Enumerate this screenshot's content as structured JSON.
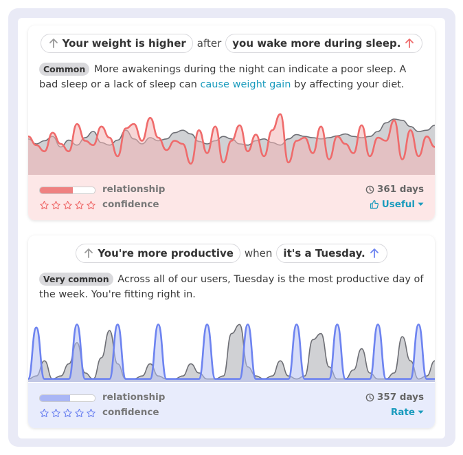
{
  "cards": [
    {
      "headline": {
        "left_pill": "Your weight is higher",
        "joiner": "after",
        "right_pill": "you wake more during sleep."
      },
      "tag": "Common",
      "description_before": "More awakenings during the night can indicate a poor sleep. A bad sleep or a lack of sleep can",
      "link": "cause weight gain",
      "description_after": "by affecting your diet.",
      "relationship_label": "relationship",
      "confidence_label": "confidence",
      "relationship_level": 0.6,
      "confidence_stars": 0,
      "days": "361 days",
      "action": "Useful",
      "colors": {
        "accent": "#ef6b6b",
        "fill": "#f3b5b5",
        "gray_fill": "#c8c9cd"
      },
      "series_a": [
        0.58,
        0.5,
        0.55,
        0.62,
        0.45,
        0.56,
        0.48,
        0.6,
        0.7,
        0.52,
        0.48,
        0.56,
        0.72,
        0.58,
        0.5,
        0.6,
        0.55,
        0.58,
        0.68,
        0.72,
        0.66,
        0.54,
        0.5,
        0.55,
        0.62,
        0.58,
        0.5,
        0.48,
        0.55,
        0.58,
        0.52,
        0.48,
        0.58,
        0.65,
        0.62,
        0.6,
        0.58,
        0.6,
        0.63,
        0.66,
        0.62,
        0.6,
        0.62,
        0.7,
        0.84,
        0.9,
        0.88,
        0.78,
        0.7,
        0.72,
        0.8
      ],
      "series_b": [
        0.62,
        0.48,
        0.38,
        0.68,
        0.5,
        0.38,
        0.82,
        0.55,
        0.48,
        0.78,
        0.6,
        0.3,
        0.75,
        0.82,
        0.55,
        0.92,
        0.6,
        0.4,
        0.55,
        0.5,
        0.18,
        0.72,
        0.35,
        0.78,
        0.2,
        0.55,
        0.8,
        0.38,
        0.65,
        0.3,
        0.72,
        0.98,
        0.2,
        0.55,
        0.6,
        0.35,
        0.78,
        0.25,
        0.62,
        0.5,
        0.35,
        0.8,
        0.3,
        0.6,
        0.55,
        0.88,
        0.25,
        0.72,
        0.3,
        0.62,
        0.45
      ]
    },
    {
      "headline": {
        "left_pill": "You're more productive",
        "joiner": "when",
        "right_pill": "it's a Tuesday."
      },
      "tag": "Very common",
      "description_before": "Across all of our users, Tuesday is the most productive day of the week. You're fitting right in.",
      "link": "",
      "description_after": "",
      "relationship_label": "relationship",
      "confidence_label": "confidence",
      "relationship_level": 0.55,
      "confidence_stars": 0,
      "days": "357 days",
      "action": "Rate",
      "colors": {
        "accent": "#6d83f0",
        "fill": "#b6c1f2",
        "gray_fill": "#c8c9cd"
      },
      "series_a": [
        0.05,
        0.1,
        0.35,
        0.05,
        0.1,
        0.3,
        0.65,
        0.15,
        0.05,
        0.4,
        0.85,
        0.3,
        0.05,
        0.05,
        0.1,
        0.3,
        0.1,
        0.05,
        0.05,
        0.1,
        0.3,
        0.15,
        0.05,
        0.05,
        0.1,
        0.8,
        0.95,
        0.25,
        0.1,
        0.05,
        0.1,
        0.35,
        0.1,
        0.05,
        0.1,
        0.7,
        0.8,
        0.25,
        0.05,
        0.05,
        0.2,
        0.55,
        0.15,
        0.05,
        0.05,
        0.15,
        0.75,
        0.35,
        0.05,
        0.1,
        0.35
      ],
      "series_b": [
        0.05,
        0.9,
        0.05,
        0.05,
        0.05,
        0.05,
        0.95,
        0.05,
        0.05,
        0.05,
        0.05,
        0.95,
        0.05,
        0.05,
        0.05,
        0.05,
        0.95,
        0.05,
        0.05,
        0.05,
        0.05,
        0.05,
        0.95,
        0.05,
        0.05,
        0.05,
        0.05,
        0.95,
        0.05,
        0.05,
        0.05,
        0.05,
        0.05,
        0.95,
        0.05,
        0.05,
        0.05,
        0.05,
        0.95,
        0.05,
        0.05,
        0.05,
        0.05,
        0.95,
        0.05,
        0.05,
        0.05,
        0.05,
        0.95,
        0.05,
        0.05
      ]
    }
  ]
}
